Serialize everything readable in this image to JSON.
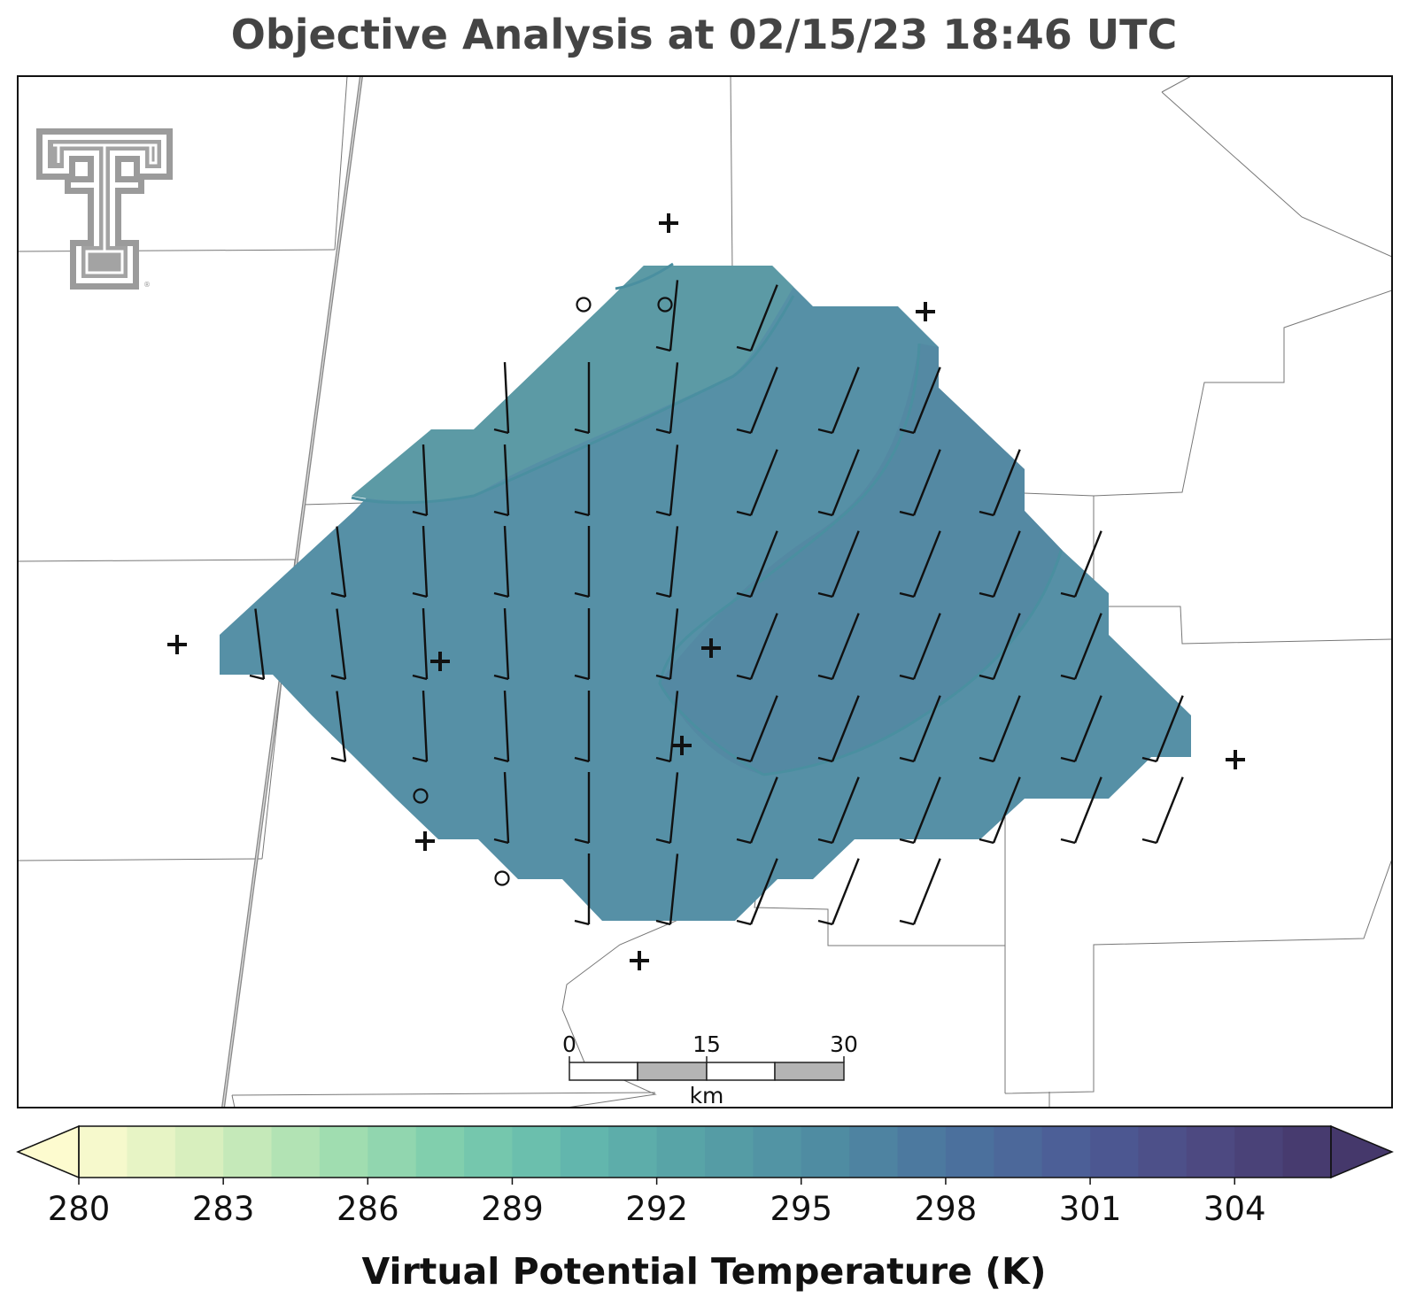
{
  "title": "Objective Analysis at 02/15/23 18:46 UTC",
  "colorbar": {
    "label": "Virtual Potential Temperature (K)",
    "min": 280,
    "max": 306,
    "step": 1,
    "ticks": [
      "280",
      "283",
      "286",
      "289",
      "292",
      "295",
      "298",
      "301",
      "304"
    ],
    "tick_values": [
      280,
      283,
      286,
      289,
      292,
      295,
      298,
      301,
      304
    ],
    "extend": "both",
    "colormap": "crest",
    "stops": [
      "#fdfbcf",
      "#d6efbd",
      "#a5dfb0",
      "#7ccdad",
      "#62b7ad",
      "#56a0a6",
      "#4f8ba2",
      "#4b739e",
      "#4c5c96",
      "#4d4a82",
      "#45386b"
    ]
  },
  "scale_bar": {
    "labels": [
      "0",
      "15",
      "30"
    ],
    "unit": "km"
  },
  "logo": {
    "icon": "double-t-logo-icon"
  },
  "analysis_field": {
    "variable": "virtual potential temperature",
    "units": "K",
    "fill_color": "#5690a6",
    "value_range": [
      295,
      297
    ]
  },
  "station_markers": {
    "plus_icon": "plus-marker-icon",
    "circle_icon": "circle-marker-icon"
  }
}
